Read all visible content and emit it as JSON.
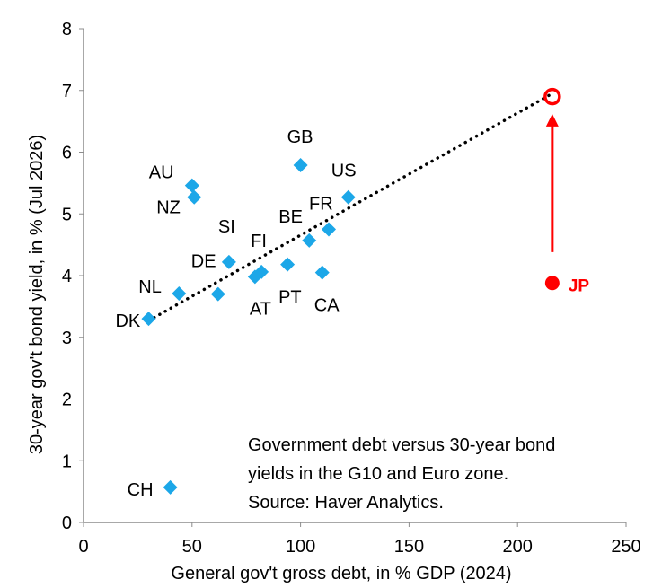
{
  "chart_data": {
    "type": "scatter",
    "title": "",
    "xlabel": "General gov't gross debt, in % GDP (2024)",
    "ylabel": "30-year gov't bond yield, in % (Jul 2026)",
    "xlim": [
      0,
      250
    ],
    "ylim": [
      0,
      8
    ],
    "x_ticks": [
      0,
      50,
      100,
      150,
      200,
      250
    ],
    "y_ticks": [
      0,
      1,
      2,
      3,
      4,
      5,
      6,
      7,
      8
    ],
    "grid": false,
    "annotation_lines": [
      "Government debt versus 30-year bond",
      "yields in the G10 and Euro zone.",
      "Source: Haver Analytics."
    ],
    "series": [
      {
        "marker": "diamond",
        "color": "#1CA7E8",
        "points": [
          {
            "label": "DK",
            "x": 30,
            "y": 3.3
          },
          {
            "label": "NL",
            "x": 44,
            "y": 3.71
          },
          {
            "label": "DE",
            "x": 62,
            "y": 3.7
          },
          {
            "label": "SI",
            "x": 67,
            "y": 4.22
          },
          {
            "label": "AT",
            "x": 79,
            "y": 3.98
          },
          {
            "label": "FI",
            "x": 82,
            "y": 4.06
          },
          {
            "label": "PT",
            "x": 94,
            "y": 4.18
          },
          {
            "label": "CA",
            "x": 110,
            "y": 4.05
          },
          {
            "label": "BE",
            "x": 104,
            "y": 4.57
          },
          {
            "label": "FR",
            "x": 113,
            "y": 4.75
          },
          {
            "label": "US",
            "x": 122,
            "y": 5.27
          },
          {
            "label": "GB",
            "x": 100,
            "y": 5.79
          },
          {
            "label": "AU",
            "x": 50,
            "y": 5.46
          },
          {
            "label": "NZ",
            "x": 51,
            "y": 5.27
          },
          {
            "label": "CH",
            "x": 40,
            "y": 0.57
          }
        ]
      },
      {
        "marker": "circle",
        "color": "#FF0000",
        "points": [
          {
            "label": "JP",
            "x": 216,
            "y": 3.88
          }
        ]
      }
    ],
    "implied_point": {
      "x": 216,
      "y": 6.9,
      "color": "#FF0000"
    },
    "arrow": {
      "from": [
        216,
        4.38
      ],
      "to": [
        216,
        6.62
      ],
      "color": "#FF0000"
    },
    "trendline": {
      "from": [
        30,
        3.27
      ],
      "to": [
        216,
        6.95
      ],
      "style": "dotted",
      "color": "#000000"
    }
  }
}
